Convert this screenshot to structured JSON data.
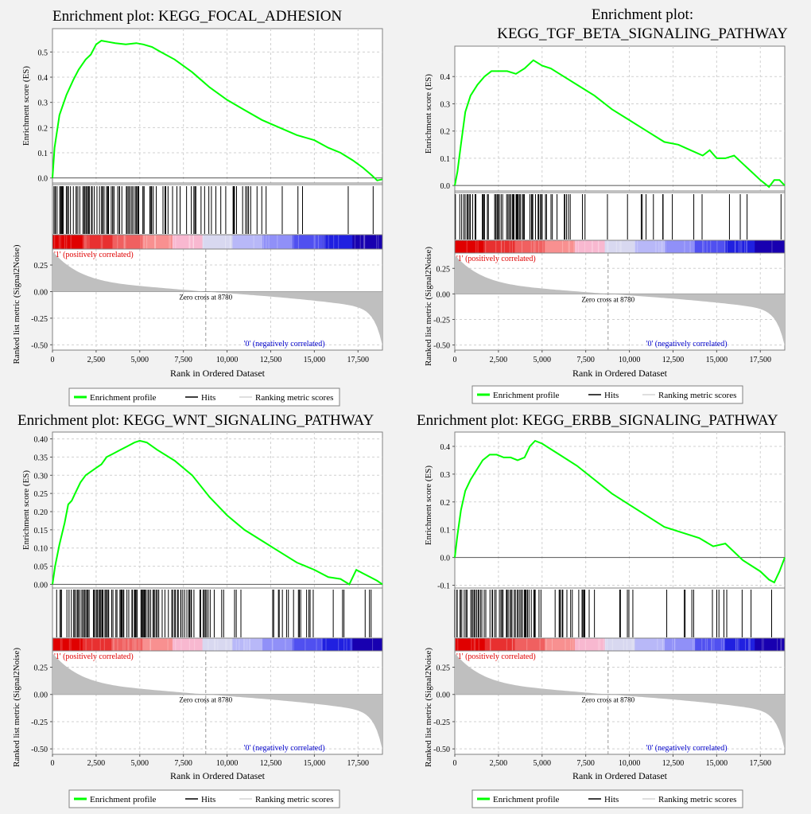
{
  "page": {
    "background": "#f2f2f2"
  },
  "colors": {
    "es_line": "#00ff00",
    "hits": "#000000",
    "metric_fill": "#bfbfbf",
    "pos_label": "#e00000",
    "neg_label": "#0000cc",
    "grid": "#d0d0d0",
    "zero_cross": "#999999"
  },
  "common": {
    "ylabel_es": "Enrichment score (ES)",
    "ylabel_metric": "Ranked list metric (Signal2Noise)",
    "xlabel": "Rank in Ordered Dataset",
    "pos_label": "'1' (positively correlated)",
    "neg_label": "'0' (negatively correlated)",
    "zero_cross_label": "Zero cross at 8780",
    "zero_cross": 8780,
    "n_genes": 18900,
    "x_ticks": [
      0,
      2500,
      5000,
      7500,
      10000,
      12500,
      15000,
      17500
    ],
    "x_tick_labels": [
      "0",
      "2,500",
      "5,000",
      "7,500",
      "10,000",
      "12,500",
      "15,000",
      "17,500"
    ],
    "metric_ticks": [
      0.25,
      0,
      -0.25,
      -0.5
    ],
    "metric_tick_labels": [
      "0.25",
      "0.00",
      "-0.25",
      "-0.50"
    ],
    "metric_ylim": [
      -0.55,
      0.4
    ],
    "legend": [
      {
        "label": "Enrichment profile",
        "color": "#00ff00",
        "icon": "green-line-icon"
      },
      {
        "label": "Hits",
        "color": "#000000",
        "icon": "black-line-icon"
      },
      {
        "label": "Ranking metric scores",
        "color": "#bfbfbf",
        "icon": "gray-line-icon"
      }
    ],
    "heatmap_colors": [
      "#e00000",
      "#e83030",
      "#f06060",
      "#f89090",
      "#f8b8d0",
      "#d8d8f0",
      "#b8b8f8",
      "#9090f8",
      "#5050f0",
      "#2020e0",
      "#1800b0"
    ]
  },
  "chart_data": [
    {
      "type": "line",
      "title": "Enrichment plot: KEGG_FOCAL_ADHESION",
      "title_lines": [
        "Enrichment plot: KEGG_FOCAL_ADHESION"
      ],
      "ylim": [
        -0.02,
        0.58
      ],
      "y_ticks": [
        0.0,
        0.1,
        0.2,
        0.3,
        0.4,
        0.5
      ],
      "y_tick_labels": [
        "0.0",
        "0.1",
        "0.2",
        "0.3",
        "0.4",
        "0.5"
      ],
      "es_curve": {
        "x": [
          0,
          120,
          400,
          800,
          1200,
          1500,
          1900,
          2200,
          2500,
          2800,
          3200,
          3600,
          4200,
          4800,
          5200,
          5700,
          6200,
          7000,
          8000,
          9000,
          10000,
          11000,
          12000,
          13000,
          14000,
          15000,
          15800,
          16500,
          17200,
          17800,
          18300,
          18600,
          18900
        ],
        "y": [
          0.0,
          0.12,
          0.25,
          0.33,
          0.39,
          0.43,
          0.47,
          0.49,
          0.53,
          0.545,
          0.54,
          0.535,
          0.53,
          0.535,
          0.53,
          0.52,
          0.5,
          0.47,
          0.42,
          0.36,
          0.31,
          0.27,
          0.23,
          0.2,
          0.17,
          0.15,
          0.12,
          0.1,
          0.07,
          0.04,
          0.01,
          -0.01,
          -0.005
        ]
      },
      "hits_density": [
        [
          0,
          5000,
          0.5
        ],
        [
          5000,
          7000,
          0.3
        ],
        [
          7000,
          12000,
          0.15
        ],
        [
          12000,
          19000,
          0.07
        ]
      ],
      "hits_seed": 11
    },
    {
      "type": "line",
      "title": "Enrichment plot: KEGG_TGF_BETA_SIGNALING_PATHWAY",
      "title_lines": [
        "Enrichment plot:",
        "KEGG_TGF_BETA_SIGNALING_PATHWAY"
      ],
      "ylim": [
        -0.02,
        0.5
      ],
      "y_ticks": [
        0.0,
        0.1,
        0.2,
        0.3,
        0.4
      ],
      "y_tick_labels": [
        "0.0",
        "0.1",
        "0.2",
        "0.3",
        "0.4"
      ],
      "es_curve": {
        "x": [
          0,
          150,
          350,
          600,
          900,
          1300,
          1700,
          2100,
          2500,
          3000,
          3500,
          4000,
          4500,
          5000,
          5500,
          6000,
          7000,
          8000,
          9000,
          10000,
          11000,
          12000,
          12800,
          13500,
          14200,
          14600,
          15000,
          15500,
          16000,
          16500,
          17000,
          17500,
          18000,
          18300,
          18600,
          18900
        ],
        "y": [
          0.0,
          0.05,
          0.15,
          0.27,
          0.33,
          0.37,
          0.4,
          0.42,
          0.42,
          0.42,
          0.41,
          0.43,
          0.46,
          0.44,
          0.43,
          0.41,
          0.37,
          0.33,
          0.28,
          0.24,
          0.2,
          0.16,
          0.15,
          0.13,
          0.11,
          0.13,
          0.1,
          0.1,
          0.11,
          0.08,
          0.05,
          0.02,
          -0.005,
          0.02,
          0.02,
          0.0
        ]
      },
      "hits_density": [
        [
          0,
          4000,
          0.45
        ],
        [
          4000,
          7000,
          0.25
        ],
        [
          7000,
          16000,
          0.05
        ],
        [
          16000,
          19000,
          0.03
        ]
      ],
      "hits_seed": 23
    },
    {
      "type": "line",
      "title": "Enrichment plot: KEGG_WNT_SIGNALING_PATHWAY",
      "title_lines": [
        "Enrichment plot: KEGG_WNT_SIGNALING_PATHWAY"
      ],
      "ylim": [
        -0.01,
        0.41
      ],
      "y_ticks": [
        0.0,
        0.05,
        0.1,
        0.15,
        0.2,
        0.25,
        0.3,
        0.35,
        0.4
      ],
      "y_tick_labels": [
        "0.00",
        "0.05",
        "0.10",
        "0.15",
        "0.20",
        "0.25",
        "0.30",
        "0.35",
        "0.40"
      ],
      "es_curve": {
        "x": [
          0,
          150,
          400,
          700,
          900,
          1100,
          1300,
          1600,
          1900,
          2200,
          2500,
          2800,
          3100,
          3500,
          3900,
          4300,
          4700,
          5000,
          5400,
          6000,
          7000,
          8000,
          9000,
          10000,
          11000,
          12000,
          13000,
          14000,
          15000,
          15800,
          16500,
          17000,
          17400,
          17800,
          18200,
          18600,
          18900
        ],
        "y": [
          0.0,
          0.05,
          0.11,
          0.17,
          0.22,
          0.23,
          0.25,
          0.28,
          0.3,
          0.31,
          0.32,
          0.33,
          0.35,
          0.36,
          0.37,
          0.38,
          0.39,
          0.395,
          0.39,
          0.37,
          0.34,
          0.3,
          0.24,
          0.19,
          0.15,
          0.12,
          0.09,
          0.06,
          0.04,
          0.02,
          0.015,
          0.0,
          0.04,
          0.03,
          0.02,
          0.01,
          0.0
        ]
      },
      "hits_density": [
        [
          0,
          6000,
          0.5
        ],
        [
          6000,
          9000,
          0.3
        ],
        [
          9000,
          15000,
          0.15
        ],
        [
          15000,
          19000,
          0.1
        ]
      ],
      "hits_seed": 37
    },
    {
      "type": "line",
      "title": "Enrichment plot: KEGG_ERBB_SIGNALING_PATHWAY",
      "title_lines": [
        "Enrichment plot: KEGG_ERBB_SIGNALING_PATHWAY"
      ],
      "ylim": [
        -0.11,
        0.44
      ],
      "y_ticks": [
        -0.1,
        0.0,
        0.1,
        0.2,
        0.3,
        0.4
      ],
      "y_tick_labels": [
        "-0.1",
        "0.0",
        "0.1",
        "0.2",
        "0.3",
        "0.4"
      ],
      "es_curve": {
        "x": [
          0,
          150,
          350,
          600,
          900,
          1200,
          1600,
          2000,
          2400,
          2800,
          3200,
          3600,
          4000,
          4300,
          4600,
          5000,
          5500,
          6000,
          7000,
          8000,
          9000,
          10000,
          11000,
          12000,
          13000,
          14000,
          14800,
          15500,
          16000,
          16500,
          17000,
          17500,
          18000,
          18300,
          18600,
          18900
        ],
        "y": [
          0.0,
          0.08,
          0.17,
          0.24,
          0.28,
          0.31,
          0.35,
          0.37,
          0.37,
          0.36,
          0.36,
          0.35,
          0.36,
          0.4,
          0.42,
          0.41,
          0.39,
          0.37,
          0.33,
          0.28,
          0.23,
          0.19,
          0.15,
          0.11,
          0.09,
          0.07,
          0.04,
          0.05,
          0.02,
          -0.01,
          -0.03,
          -0.05,
          -0.08,
          -0.09,
          -0.05,
          0.0
        ]
      },
      "hits_density": [
        [
          0,
          5000,
          0.45
        ],
        [
          5000,
          8000,
          0.25
        ],
        [
          8000,
          16000,
          0.08
        ],
        [
          16000,
          19000,
          0.04
        ]
      ],
      "hits_seed": 53
    }
  ]
}
